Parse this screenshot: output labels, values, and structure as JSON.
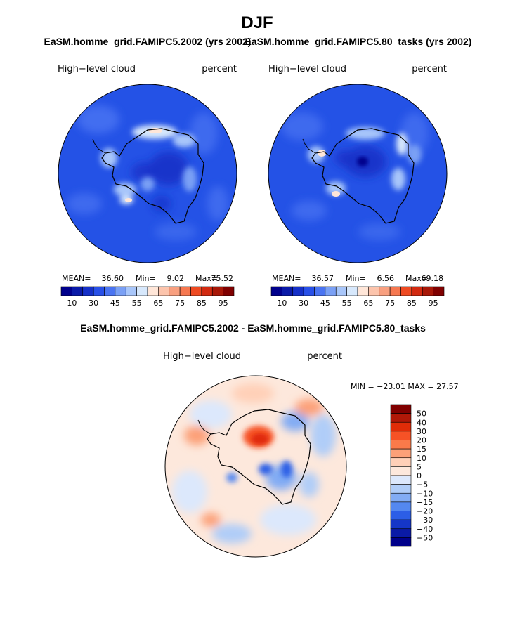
{
  "page": {
    "title": "DJF"
  },
  "panels": {
    "left": {
      "title": "EaSM.homme_grid.FAMIPC5.2002 (yrs 2002)",
      "variable": "High−level cloud",
      "units": "percent",
      "stats": {
        "mean_label": "MEAN=",
        "mean": "36.60",
        "min_label": "Min=",
        "min": "9.02",
        "max_label": "Max=",
        "max": "75.52"
      }
    },
    "right": {
      "title": "EaSM.homme_grid.FAMIPC5.80_tasks (yrs 2002)",
      "variable": "High−level cloud",
      "units": "percent",
      "stats": {
        "mean_label": "MEAN=",
        "mean": "36.57",
        "min_label": "Min=",
        "min": "6.56",
        "max_label": "Max=",
        "max": "69.18"
      }
    },
    "diff": {
      "title": "EaSM.homme_grid.FAMIPC5.2002 - EaSM.homme_grid.FAMIPC5.80_tasks",
      "variable": "High−level cloud",
      "units": "percent",
      "minmax": "MIN = −23.01  MAX =   27.57"
    }
  },
  "colorbar_abs": {
    "colors": [
      "#00008c",
      "#0a1aa8",
      "#1530c8",
      "#2850e8",
      "#4a74f2",
      "#7aa0f5",
      "#a8c6fa",
      "#d7e8fc",
      "#ffe6d8",
      "#fcc4ac",
      "#f9a080",
      "#f67850",
      "#ee4a22",
      "#d22a10",
      "#a81808",
      "#800000"
    ],
    "labels": [
      "10",
      "30",
      "45",
      "55",
      "65",
      "75",
      "85",
      "95"
    ]
  },
  "colorbar_diff": {
    "colors": [
      "#800000",
      "#b01808",
      "#e02c08",
      "#f65226",
      "#fa7a4a",
      "#fca078",
      "#ffd0b8",
      "#fde8dc",
      "#dce8fc",
      "#b0cdf8",
      "#82acf4",
      "#5488f0",
      "#2c5ee6",
      "#1536c8",
      "#0a1aa6",
      "#00008a"
    ],
    "labels": [
      "50",
      "40",
      "30",
      "20",
      "15",
      "10",
      "5",
      "0",
      "−5",
      "−10",
      "−15",
      "−20",
      "−30",
      "−40",
      "−50"
    ]
  }
}
